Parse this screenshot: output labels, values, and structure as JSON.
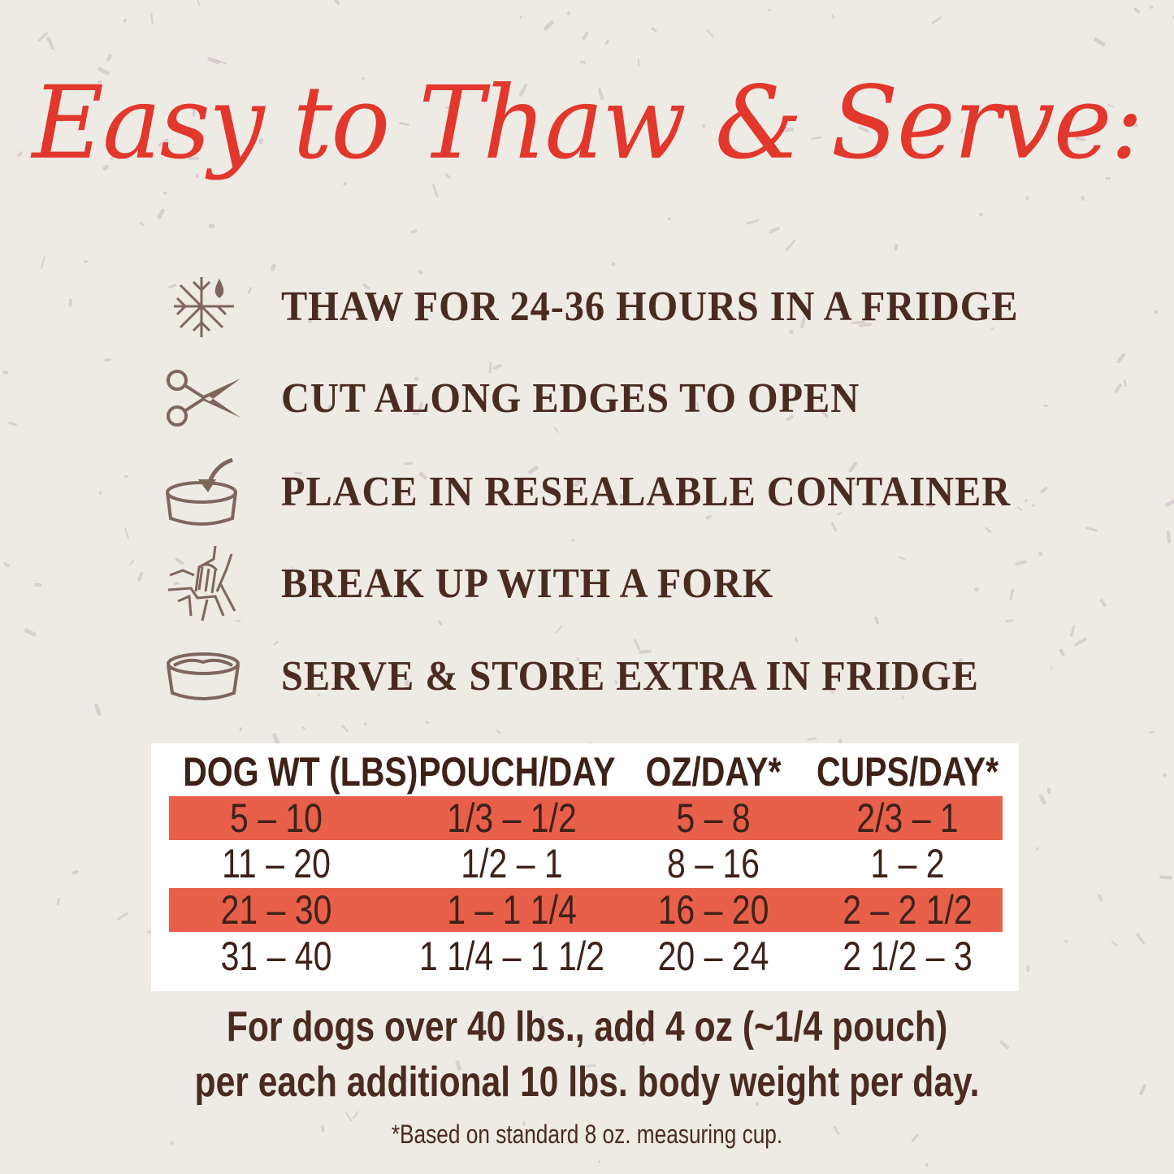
{
  "title": "Easy to Thaw & Serve:",
  "colors": {
    "title": "#e2372d",
    "text": "#4a2b20",
    "highlight_row": "#e8604a",
    "background": "#eeeae4",
    "icon": "#7d665c"
  },
  "steps": [
    {
      "icon": "snowflake-drop-icon",
      "text": "THAW FOR 24-36 HOURS IN A FRIDGE"
    },
    {
      "icon": "scissors-icon",
      "text": "CUT ALONG EDGES TO OPEN"
    },
    {
      "icon": "container-arrow-icon",
      "text": "PLACE IN RESEALABLE CONTAINER"
    },
    {
      "icon": "fork-icon",
      "text": "BREAK UP WITH A FORK"
    },
    {
      "icon": "bowl-icon",
      "text": "SERVE & STORE EXTRA IN FRIDGE"
    }
  ],
  "table": {
    "headers": [
      "DOG WT (LBS)",
      "POUCH/DAY",
      "OZ/DAY*",
      "CUPS/DAY*"
    ],
    "rows": [
      [
        "5 – 10",
        "1/3 – 1/2",
        "5 – 8",
        "2/3 – 1"
      ],
      [
        "11 – 20",
        "1/2 – 1",
        "8 – 16",
        "1 – 2"
      ],
      [
        "21 – 30",
        "1 – 1 1/4",
        "16 – 20",
        "2 – 2 1/2"
      ],
      [
        "31 – 40",
        "1 1/4 – 1 1/2",
        "20 – 24",
        "2 1/2 – 3"
      ]
    ]
  },
  "note": {
    "line1": "For dogs over 40 lbs., add 4 oz (~1/4 pouch)",
    "line2": "per each additional 10 lbs. body weight per day."
  },
  "footnote": "*Based on standard 8 oz. measuring cup."
}
